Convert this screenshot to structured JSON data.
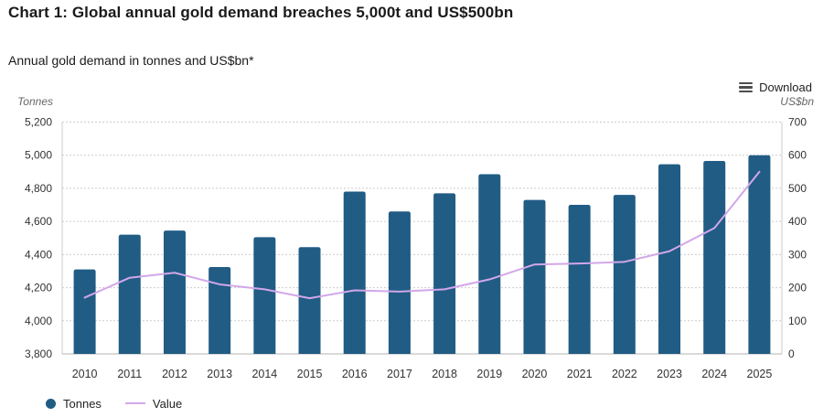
{
  "header": {
    "title": "Chart 1: Global annual gold demand breaches 5,000t and US$500bn",
    "subtitle": "Annual gold demand in tonnes and US$bn*"
  },
  "toolbar": {
    "download_label": "Download"
  },
  "chart_data": {
    "type": "bar",
    "subtype": "bar-and-line dual-axis combo",
    "categories": [
      "2010",
      "2011",
      "2012",
      "2013",
      "2014",
      "2015",
      "2016",
      "2017",
      "2018",
      "2019",
      "2020",
      "2021",
      "2022",
      "2023",
      "2024",
      "2025"
    ],
    "series": [
      {
        "name": "Tonnes",
        "type": "bar",
        "yaxis": "left",
        "color": "#215c85",
        "values": [
          4310,
          4520,
          4545,
          4325,
          4505,
          4445,
          4780,
          4660,
          4770,
          4885,
          4730,
          4700,
          4760,
          4945,
          4965,
          5000
        ]
      },
      {
        "name": "Value",
        "type": "line",
        "yaxis": "right",
        "color": "#d2a7e9",
        "values": [
          170,
          230,
          245,
          210,
          195,
          168,
          192,
          188,
          195,
          225,
          270,
          273,
          278,
          310,
          380,
          550
        ]
      }
    ],
    "left_axis": {
      "title": "Tonnes",
      "min": 3800,
      "max": 5200,
      "step": 200
    },
    "right_axis": {
      "title": "US$bn",
      "min": 0,
      "max": 700,
      "step": 100
    },
    "grid": "horizontal dotted",
    "legend_position": "bottom-left",
    "legend": [
      {
        "label": "Tonnes",
        "marker": "circle"
      },
      {
        "label": "Value",
        "marker": "line"
      }
    ],
    "colors": {
      "bar": "#215c85",
      "line": "#d2a7e9",
      "grid": "#cccccc",
      "axis_line": "#cccccc",
      "tick_text": "#333333",
      "axis_title_text": "#666666"
    }
  }
}
